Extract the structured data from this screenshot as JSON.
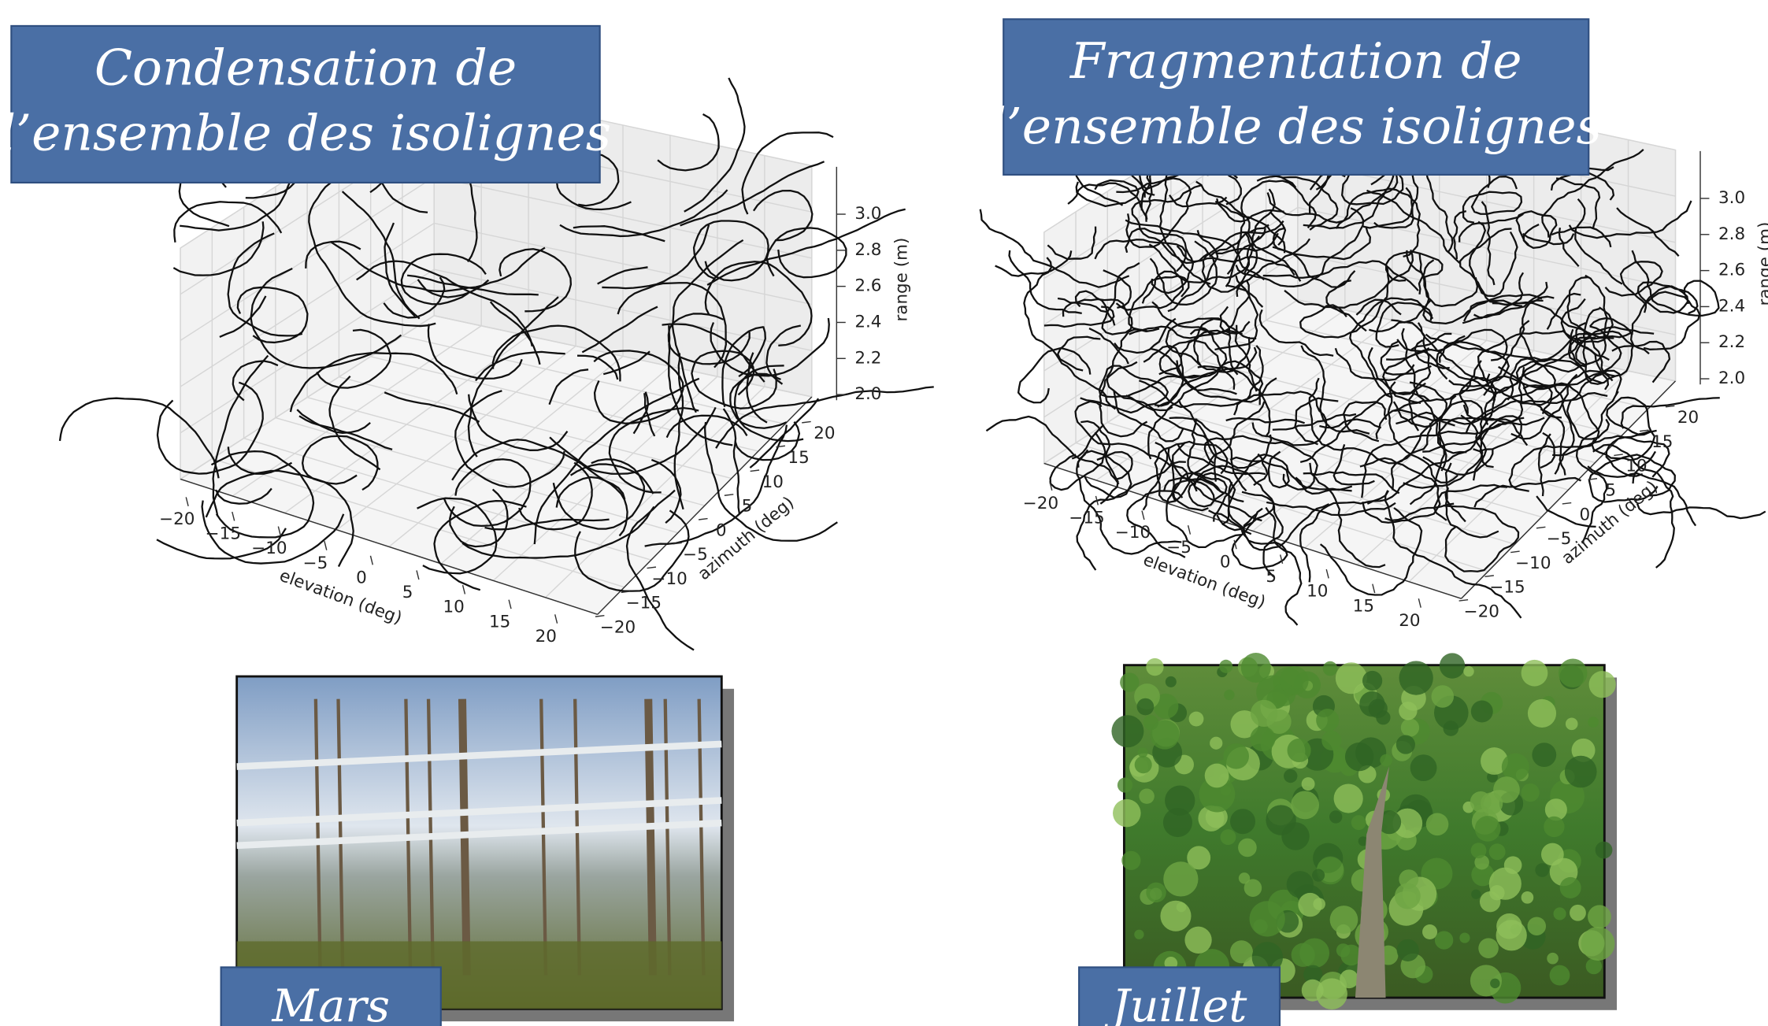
{
  "panels": [
    {
      "title": [
        "Condensation de",
        "l’ensemble des isolignes"
      ],
      "caption": "Mars",
      "plot": {
        "x_label": "elevation (deg)",
        "y_label": "azimuth (deg)",
        "z_label": "range (m)",
        "xticks": [
          "−20",
          "−15",
          "−10",
          "−5",
          "0",
          "5",
          "10",
          "15",
          "20"
        ],
        "yticks": [
          "−20",
          "−15",
          "−10",
          "−5",
          "0",
          "5",
          "10",
          "15",
          "20"
        ],
        "zticks": [
          "2.0",
          "2.2",
          "2.4",
          "2.6",
          "2.8",
          "3.0"
        ]
      }
    },
    {
      "title": [
        "Fragmentation de",
        "l’ensemble des isolignes"
      ],
      "caption": "Juillet",
      "plot": {
        "x_label": "elevation (deg)",
        "y_label": "azimuth (deg)",
        "z_label": "range (m)",
        "xticks": [
          "−20",
          "−15",
          "−10",
          "−5",
          "0",
          "5",
          "10",
          "15",
          "20"
        ],
        "yticks": [
          "−20",
          "−15",
          "−10",
          "−5",
          "0",
          "5",
          "10",
          "15",
          "20"
        ],
        "zticks": [
          "2.0",
          "2.2",
          "2.4",
          "2.6",
          "2.8",
          "3.0"
        ]
      }
    }
  ]
}
